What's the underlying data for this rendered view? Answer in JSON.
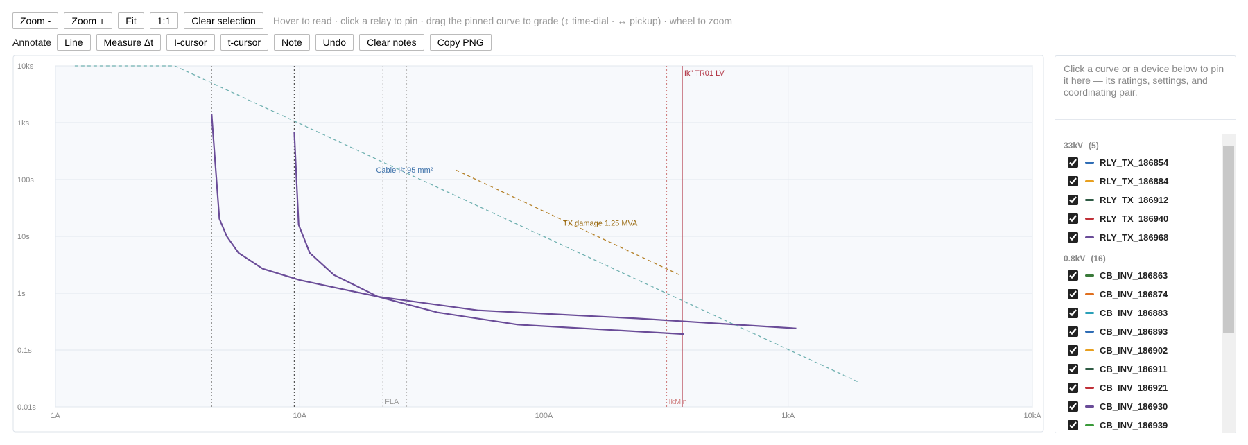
{
  "toolbar": {
    "buttons": [
      "Zoom -",
      "Zoom +",
      "Fit",
      "1:1",
      "Clear selection"
    ],
    "hint": "Hover to read · click a relay to pin · drag the pinned curve to grade (↕ time-dial · ↔ pickup) · wheel to zoom"
  },
  "annotate": {
    "label": "Annotate",
    "buttons": [
      "Line",
      "Measure Δt",
      "I-cursor",
      "t-cursor",
      "Note",
      "Undo",
      "Clear notes",
      "Copy PNG"
    ]
  },
  "chart_data": {
    "type": "line",
    "log_x": true,
    "log_y": true,
    "grid": true,
    "xlim": [
      1,
      10000
    ],
    "ylim": [
      0.01,
      10000
    ],
    "xticks": [
      {
        "value": 1,
        "label": "1A"
      },
      {
        "value": 10,
        "label": "10A"
      },
      {
        "value": 100,
        "label": "100A"
      },
      {
        "value": 1000,
        "label": "1kA"
      },
      {
        "value": 10000,
        "label": "10kA"
      }
    ],
    "yticks": [
      {
        "value": 0.01,
        "label": "0.01s"
      },
      {
        "value": 0.1,
        "label": "0.1s"
      },
      {
        "value": 1,
        "label": "1s"
      },
      {
        "value": 10,
        "label": "10s"
      },
      {
        "value": 100,
        "label": "100s"
      },
      {
        "value": 1000,
        "label": "1ks"
      },
      {
        "value": 10000,
        "label": "10ks"
      }
    ],
    "series": [
      {
        "color": "#6a4c98",
        "dash": false,
        "x": [
          4.36,
          4.69,
          5.03,
          5.62,
          7.05,
          10,
          20.9,
          53.5,
          240,
          1080
        ],
        "values": [
          1400,
          20.4,
          10,
          5.1,
          2.7,
          1.7,
          0.87,
          0.5,
          0.36,
          0.24
        ]
      },
      {
        "color": "#6a4c98",
        "dash": false,
        "x": [
          9.5,
          9.9,
          11,
          13.8,
          20.9,
          36.6,
          78,
          375
        ],
        "values": [
          690,
          16,
          5.1,
          2.1,
          0.87,
          0.46,
          0.28,
          0.19
        ]
      },
      {
        "name": "Cable I²t 95 mm²",
        "color": "#6fb0b0",
        "label_color": "#3a6fa8",
        "dash": true,
        "x": [
          1.2,
          3.08,
          1935
        ],
        "values": [
          10000,
          10000,
          0.0275
        ]
      },
      {
        "name": "TX damage 1.25 MVA",
        "color": "#b5822a",
        "label_color": "#9a6a10",
        "dash": true,
        "x": [
          43.6,
          368
        ],
        "values": [
          147,
          2.0
        ]
      }
    ],
    "markers": [
      {
        "x": 4.36,
        "color": "#888888",
        "style": "dotted"
      },
      {
        "x": 9.5,
        "color": "#555555",
        "style": "dotted"
      },
      {
        "x": 21.9,
        "color": "#bbbbbb",
        "style": "dotted",
        "label": "FLA"
      },
      {
        "x": 27.4,
        "color": "#bbbbbb",
        "style": "dotted"
      },
      {
        "x": 318,
        "color": "#d08080",
        "style": "dotted",
        "label": "IkMin"
      },
      {
        "x": 368,
        "color": "#b03040",
        "style": "solid",
        "label": "Ik\" TR01 LV"
      }
    ]
  },
  "side_panel": {
    "hint": "Click a curve or a device below to pin it here — its ratings, settings, and coordinating pair.",
    "groups": [
      {
        "name": "33kV",
        "count": "(5)",
        "items": [
          {
            "name": "RLY_TX_186854",
            "color": "#2f6db5"
          },
          {
            "name": "RLY_TX_186884",
            "color": "#e8a020"
          },
          {
            "name": "RLY_TX_186912",
            "color": "#2f5a44"
          },
          {
            "name": "RLY_TX_186940",
            "color": "#c03038"
          },
          {
            "name": "RLY_TX_186968",
            "color": "#6a4c98"
          }
        ]
      },
      {
        "name": "0.8kV",
        "count": "(16)",
        "items": [
          {
            "name": "CB_INV_186863",
            "color": "#3a7a3a"
          },
          {
            "name": "CB_INV_186874",
            "color": "#e07020"
          },
          {
            "name": "CB_INV_186883",
            "color": "#2aa0b8"
          },
          {
            "name": "CB_INV_186893",
            "color": "#2f6db5"
          },
          {
            "name": "CB_INV_186902",
            "color": "#e8a020"
          },
          {
            "name": "CB_INV_186911",
            "color": "#2f5a44"
          },
          {
            "name": "CB_INV_186921",
            "color": "#c03038"
          },
          {
            "name": "CB_INV_186930",
            "color": "#6a4c98"
          },
          {
            "name": "CB_INV_186939",
            "color": "#3a9a3a"
          }
        ]
      }
    ]
  }
}
